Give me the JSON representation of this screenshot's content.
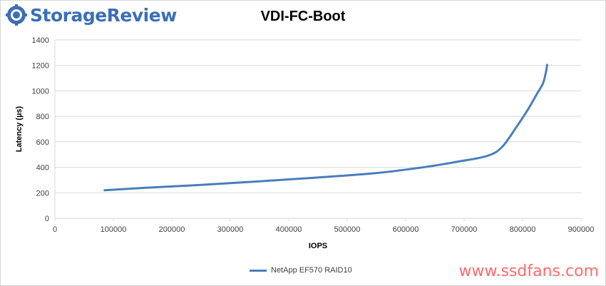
{
  "logo": {
    "text": "StorageReview",
    "icon": "storagereview-gear-logo-icon",
    "color": "#3b6fb6"
  },
  "watermark": {
    "text": "www.ssdfans.com",
    "color": "#ff6a6a"
  },
  "chart_data": {
    "type": "line",
    "title": "VDI-FC-Boot",
    "xlabel": "IOPS",
    "ylabel": "Latency (µs)",
    "xlim": [
      0,
      900000
    ],
    "ylim": [
      0,
      1400
    ],
    "x_ticks": [
      "0",
      "100000",
      "200000",
      "300000",
      "400000",
      "500000",
      "600000",
      "700000",
      "800000",
      "900000"
    ],
    "y_ticks": [
      "0",
      "200",
      "400",
      "600",
      "800",
      "1000",
      "1200",
      "1400"
    ],
    "grid": true,
    "legend_position": "bottom",
    "series": [
      {
        "name": "NetApp EF570 RAID10",
        "color": "#4a7ebb",
        "x": [
          85000,
          150000,
          250000,
          350000,
          450000,
          550000,
          630000,
          690000,
          740000,
          765000,
          790000,
          810000,
          825000,
          835000,
          840000,
          842000
        ],
        "y": [
          220,
          238,
          262,
          290,
          320,
          355,
          400,
          445,
          490,
          560,
          720,
          860,
          980,
          1060,
          1150,
          1205
        ]
      }
    ]
  }
}
